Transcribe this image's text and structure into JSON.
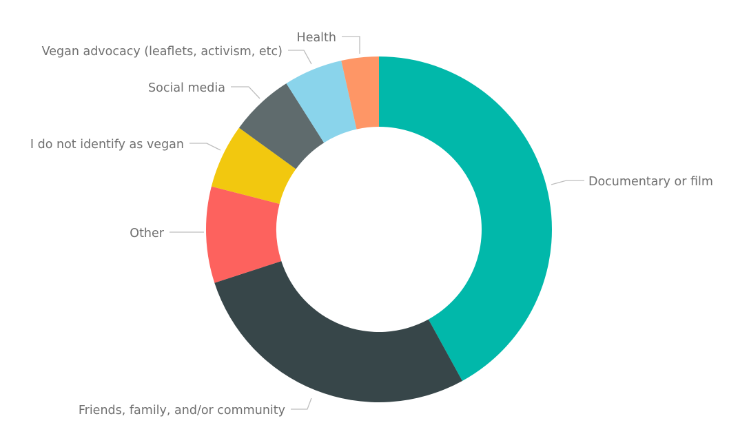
{
  "chart_data": {
    "type": "pie",
    "donut": true,
    "title": "",
    "legend": "none",
    "slices": [
      {
        "label": "Documentary or film",
        "value": 42.0,
        "color": "#01b8aa"
      },
      {
        "label": "Friends, family, and/or community",
        "value": 28.0,
        "color": "#374649"
      },
      {
        "label": "Other",
        "value": 9.0,
        "color": "#fd625e"
      },
      {
        "label": "I do not identify as vegan",
        "value": 6.0,
        "color": "#f2c80f"
      },
      {
        "label": "Social media",
        "value": 6.0,
        "color": "#5f6b6d"
      },
      {
        "label": "Vegan advocacy (leaflets, activism, etc)",
        "value": 5.5,
        "color": "#8ad4eb"
      },
      {
        "label": "Health",
        "value": 3.5,
        "color": "#fe9666"
      }
    ]
  }
}
